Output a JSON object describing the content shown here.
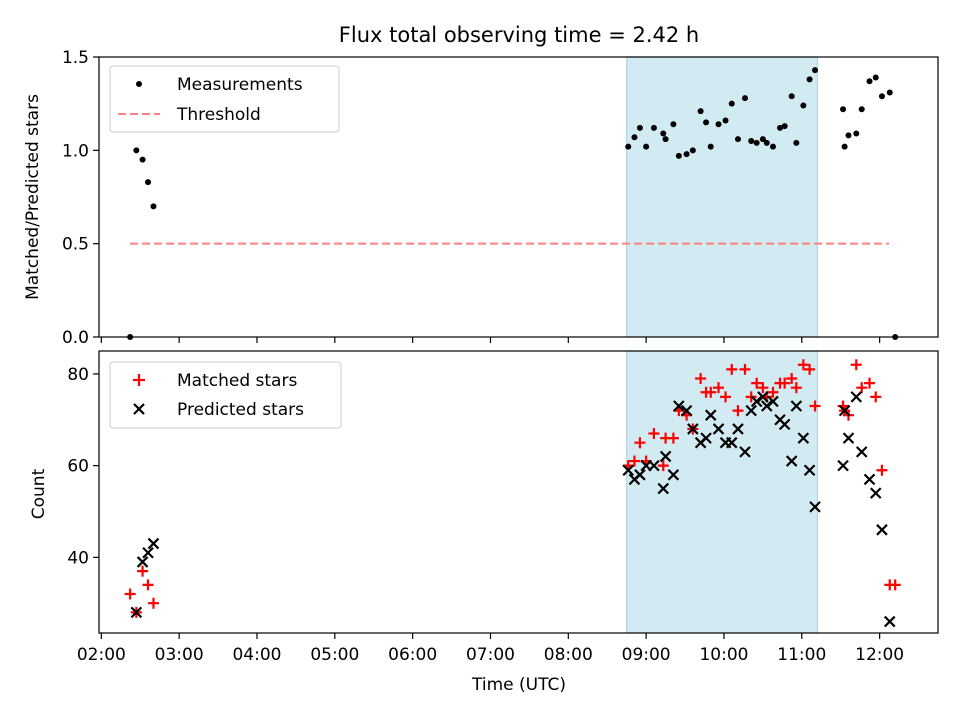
{
  "chart_data": {
    "type": "scatter",
    "title": "Flux total observing time = 2.42 h",
    "xlabel": "Time (UTC)",
    "x_ticks": [
      "02:00",
      "03:00",
      "04:00",
      "05:00",
      "06:00",
      "07:00",
      "08:00",
      "09:00",
      "10:00",
      "11:00",
      "12:00"
    ],
    "x_tick_hours": [
      2,
      3,
      4,
      5,
      6,
      7,
      8,
      9,
      10,
      11,
      12
    ],
    "xlim_hours": [
      1.97,
      12.75
    ],
    "shaded_span_hours": [
      8.75,
      11.2
    ],
    "colors": {
      "shade": "#add8e6",
      "measurements": "#000000",
      "threshold": "#ff7f7f",
      "matched": "#ff0000",
      "predicted": "#000000"
    },
    "panels": [
      {
        "ylabel": "Matched/Predicted stars",
        "ylim": [
          0,
          1.5
        ],
        "y_ticks": [
          "0.0",
          "0.5",
          "1.0",
          "1.5"
        ],
        "y_tick_values": [
          0,
          0.5,
          1.0,
          1.5
        ],
        "legend": {
          "location": "upper-left",
          "entries": [
            "Measurements",
            "Threshold"
          ]
        },
        "threshold": {
          "value": 0.5,
          "x_range_hours": [
            2.37,
            12.12
          ]
        },
        "series": [
          {
            "name": "Measurements",
            "marker": "dot",
            "points": [
              [
                2.37,
                0.0
              ],
              [
                2.45,
                1.0
              ],
              [
                2.53,
                0.95
              ],
              [
                2.6,
                0.83
              ],
              [
                2.67,
                0.7
              ],
              [
                8.77,
                1.02
              ],
              [
                8.85,
                1.07
              ],
              [
                8.92,
                1.12
              ],
              [
                9.0,
                1.02
              ],
              [
                9.1,
                1.12
              ],
              [
                9.22,
                1.09
              ],
              [
                9.25,
                1.06
              ],
              [
                9.35,
                1.14
              ],
              [
                9.42,
                0.97
              ],
              [
                9.52,
                0.98
              ],
              [
                9.6,
                1.0
              ],
              [
                9.7,
                1.21
              ],
              [
                9.77,
                1.15
              ],
              [
                9.83,
                1.02
              ],
              [
                9.93,
                1.14
              ],
              [
                10.02,
                1.16
              ],
              [
                10.1,
                1.25
              ],
              [
                10.18,
                1.06
              ],
              [
                10.27,
                1.28
              ],
              [
                10.35,
                1.05
              ],
              [
                10.42,
                1.04
              ],
              [
                10.5,
                1.06
              ],
              [
                10.55,
                1.04
              ],
              [
                10.63,
                1.02
              ],
              [
                10.72,
                1.12
              ],
              [
                10.78,
                1.13
              ],
              [
                10.87,
                1.29
              ],
              [
                10.93,
                1.04
              ],
              [
                11.02,
                1.24
              ],
              [
                11.1,
                1.38
              ],
              [
                11.17,
                1.43
              ],
              [
                11.53,
                1.22
              ],
              [
                11.55,
                1.02
              ],
              [
                11.6,
                1.08
              ],
              [
                11.7,
                1.09
              ],
              [
                11.77,
                1.22
              ],
              [
                11.87,
                1.37
              ],
              [
                11.95,
                1.39
              ],
              [
                12.03,
                1.29
              ],
              [
                12.13,
                1.31
              ],
              [
                12.2,
                0.0
              ]
            ]
          }
        ]
      },
      {
        "ylabel": "Count",
        "ylim": [
          23.5,
          85
        ],
        "y_ticks": [
          "40",
          "60",
          "80"
        ],
        "y_tick_values": [
          40,
          60,
          80
        ],
        "legend": {
          "location": "upper-left",
          "entries": [
            "Matched stars",
            "Predicted stars"
          ]
        },
        "series": [
          {
            "name": "Matched stars",
            "marker": "plus",
            "points": [
              [
                2.37,
                32
              ],
              [
                2.45,
                28
              ],
              [
                2.53,
                37
              ],
              [
                2.6,
                34
              ],
              [
                2.67,
                30
              ],
              [
                8.77,
                60
              ],
              [
                8.85,
                61
              ],
              [
                8.92,
                65
              ],
              [
                9.0,
                61
              ],
              [
                9.1,
                67
              ],
              [
                9.22,
                60
              ],
              [
                9.25,
                66
              ],
              [
                9.35,
                66
              ],
              [
                9.42,
                72
              ],
              [
                9.52,
                71
              ],
              [
                9.6,
                68
              ],
              [
                9.7,
                79
              ],
              [
                9.77,
                76
              ],
              [
                9.83,
                76
              ],
              [
                9.93,
                77
              ],
              [
                10.02,
                75
              ],
              [
                10.1,
                81
              ],
              [
                10.18,
                72
              ],
              [
                10.27,
                81
              ],
              [
                10.35,
                75
              ],
              [
                10.42,
                78
              ],
              [
                10.5,
                77
              ],
              [
                10.55,
                75
              ],
              [
                10.63,
                76
              ],
              [
                10.72,
                78
              ],
              [
                10.78,
                78
              ],
              [
                10.87,
                79
              ],
              [
                10.93,
                77
              ],
              [
                11.02,
                82
              ],
              [
                11.1,
                81
              ],
              [
                11.17,
                73
              ],
              [
                11.53,
                73
              ],
              [
                11.55,
                72
              ],
              [
                11.6,
                71
              ],
              [
                11.7,
                82
              ],
              [
                11.77,
                77
              ],
              [
                11.87,
                78
              ],
              [
                11.95,
                75
              ],
              [
                12.03,
                59
              ],
              [
                12.13,
                34
              ],
              [
                12.2,
                34
              ]
            ]
          },
          {
            "name": "Predicted stars",
            "marker": "x",
            "points": [
              [
                2.45,
                28
              ],
              [
                2.53,
                39
              ],
              [
                2.6,
                41
              ],
              [
                2.67,
                43
              ],
              [
                8.77,
                59
              ],
              [
                8.85,
                57
              ],
              [
                8.92,
                58
              ],
              [
                9.0,
                60
              ],
              [
                9.1,
                60
              ],
              [
                9.22,
                55
              ],
              [
                9.25,
                62
              ],
              [
                9.35,
                58
              ],
              [
                9.42,
                73
              ],
              [
                9.52,
                72
              ],
              [
                9.6,
                68
              ],
              [
                9.7,
                65
              ],
              [
                9.77,
                66
              ],
              [
                9.83,
                71
              ],
              [
                9.93,
                68
              ],
              [
                10.02,
                65
              ],
              [
                10.1,
                65
              ],
              [
                10.18,
                68
              ],
              [
                10.27,
                63
              ],
              [
                10.35,
                72
              ],
              [
                10.42,
                74
              ],
              [
                10.5,
                75
              ],
              [
                10.55,
                73
              ],
              [
                10.63,
                74
              ],
              [
                10.72,
                70
              ],
              [
                10.78,
                69
              ],
              [
                10.87,
                61
              ],
              [
                10.93,
                73
              ],
              [
                11.02,
                66
              ],
              [
                11.1,
                59
              ],
              [
                11.17,
                51
              ],
              [
                11.53,
                60
              ],
              [
                11.55,
                72
              ],
              [
                11.6,
                66
              ],
              [
                11.7,
                75
              ],
              [
                11.77,
                63
              ],
              [
                11.87,
                57
              ],
              [
                11.95,
                54
              ],
              [
                12.03,
                46
              ],
              [
                12.13,
                26
              ]
            ]
          }
        ]
      }
    ]
  }
}
